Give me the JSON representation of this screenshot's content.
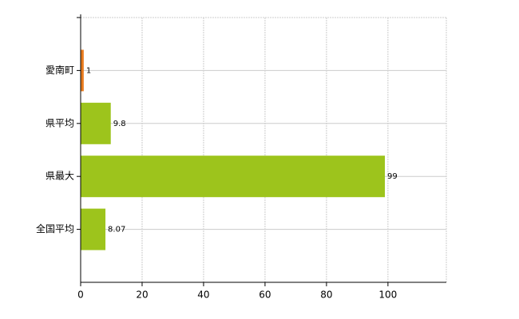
{
  "chart_data": {
    "type": "bar",
    "orientation": "horizontal",
    "categories": [
      "愛南町",
      "県平均",
      "県最大",
      "全国平均"
    ],
    "values": [
      1,
      9.8,
      99,
      8.07
    ],
    "colors": [
      "#e87b1e",
      "#9dc41c",
      "#9dc41c",
      "#9dc41c"
    ],
    "xlim": [
      0,
      119
    ],
    "xticks": [
      0,
      20,
      40,
      60,
      80,
      100
    ],
    "grid": true
  }
}
